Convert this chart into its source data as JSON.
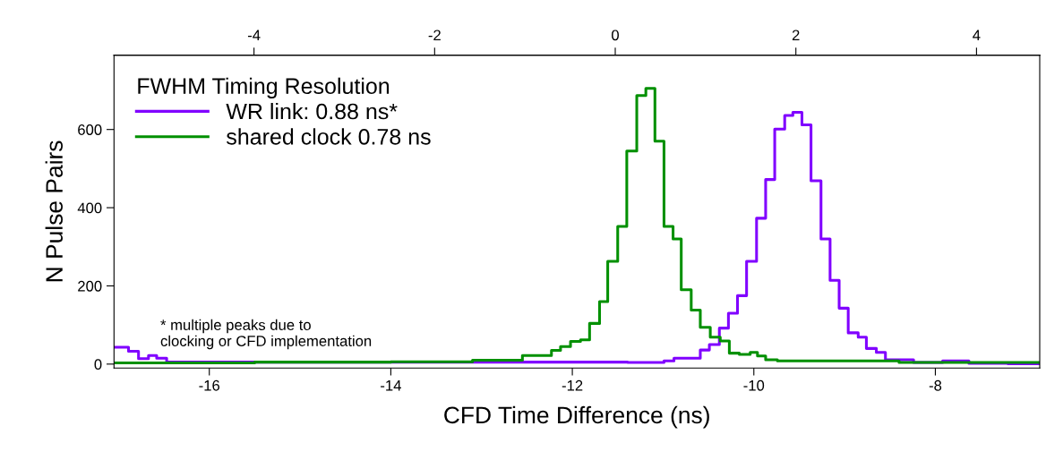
{
  "chart_data": {
    "type": "step",
    "xlabel": "CFD Time Difference (ns)",
    "ylabel": "N Pulse Pairs",
    "legend_title": "FWHM Timing Resolution",
    "legend": "top left",
    "grid": false,
    "xlim": [
      -17.05,
      -6.85
    ],
    "xticks": [
      -16,
      -14,
      -12,
      -10,
      -8
    ],
    "x2lim": [
      -5.55,
      4.7
    ],
    "x2ticks": [
      -4,
      -2,
      0,
      2,
      4
    ],
    "ylim": [
      -10,
      790
    ],
    "yticks": [
      0,
      200,
      400,
      600
    ],
    "annotations": [
      "* multiple peaks due to\nclocking or CFD implementation"
    ],
    "series": [
      {
        "name": "WR link: 0.88 ns*",
        "color": "#8000ff",
        "x": [
          -17.05,
          -16.89,
          -16.78,
          -16.67,
          -16.58,
          -16.47,
          -11.39,
          -10.99,
          -10.88,
          -10.59,
          -10.49,
          -10.38,
          -10.28,
          -10.18,
          -10.08,
          -9.97,
          -9.87,
          -9.77,
          -9.66,
          -9.57,
          -9.47,
          -9.37,
          -9.26,
          -9.16,
          -9.06,
          -8.96,
          -8.85,
          -8.76,
          -8.65,
          -8.55,
          -8.24,
          -7.92,
          -7.63,
          -7.2,
          -6.85
        ],
        "values": [
          43,
          33,
          14,
          22,
          15,
          5,
          4,
          8,
          15,
          36,
          50,
          92,
          130,
          175,
          263,
          373,
          472,
          601,
          636,
          644,
          612,
          469,
          320,
          214,
          143,
          80,
          69,
          40,
          30,
          11,
          4,
          8,
          2,
          1,
          1
        ]
      },
      {
        "name": "shared clock 0.78 ns",
        "color": "#009000",
        "x": [
          -17.05,
          -15.5,
          -14.0,
          -13.1,
          -12.55,
          -12.23,
          -12.13,
          -12.02,
          -11.91,
          -11.81,
          -11.7,
          -11.61,
          -11.5,
          -11.4,
          -11.29,
          -11.19,
          -11.09,
          -10.99,
          -10.89,
          -10.8,
          -10.69,
          -10.59,
          -10.48,
          -10.37,
          -10.27,
          -10.16,
          -10.04,
          -9.96,
          -9.87,
          -9.74,
          -8.4,
          -6.85
        ],
        "values": [
          3,
          5,
          6,
          10,
          22,
          35,
          45,
          58,
          62,
          104,
          160,
          263,
          352,
          545,
          687,
          705,
          570,
          352,
          320,
          190,
          138,
          94,
          69,
          59,
          28,
          25,
          30,
          21,
          11,
          8,
          4,
          4
        ]
      }
    ]
  }
}
